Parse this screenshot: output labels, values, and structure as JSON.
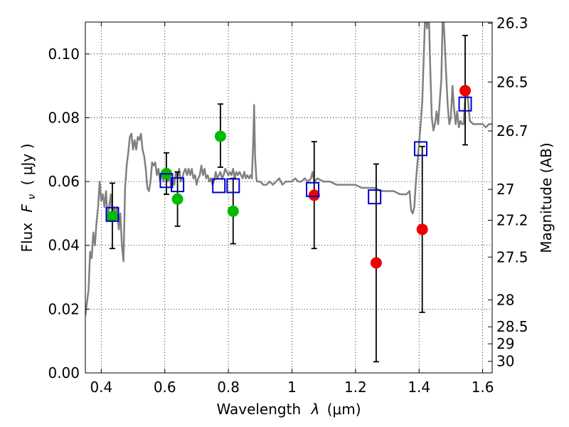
{
  "chart_data": {
    "type": "scatter",
    "xlabel": "Wavelength",
    "xlabel_symbol": "λ",
    "xlabel_unit": "(μm)",
    "ylabel": "Flux",
    "ylabel_symbol": "F",
    "ylabel_subscript": "ν",
    "ylabel_unit": "( μJy )",
    "y2label": "Magnitude (AB)",
    "xlim": [
      0.35,
      1.63
    ],
    "ylim": [
      0.0,
      0.11
    ],
    "grid": true,
    "xticks": [
      0.4,
      0.6,
      0.8,
      1.0,
      1.2,
      1.4,
      1.6
    ],
    "xtick_labels": [
      "0.4",
      "0.6",
      "0.8",
      "1",
      "1.2",
      "1.4",
      "1.6"
    ],
    "yticks": [
      0.0,
      0.02,
      0.04,
      0.06,
      0.08,
      0.1
    ],
    "ytick_labels": [
      "0.00",
      "0.02",
      "0.04",
      "0.06",
      "0.08",
      "0.10"
    ],
    "mag_ticks": [
      "26.3",
      "26.5",
      "26.7",
      "27",
      "27.2",
      "27.5",
      "28",
      "28.5",
      "29",
      "30"
    ],
    "colors": {
      "template": "#808080",
      "model": "#0000cc",
      "green": "#00bb00",
      "red": "#ee0000",
      "errorbar": "#000000"
    },
    "series": [
      {
        "marker": "circle-green",
        "points": [
          {
            "x": 0.435,
            "y": 0.049,
            "yerr_low": 0.039,
            "yerr_high": 0.0595
          },
          {
            "x": 0.605,
            "y": 0.0625,
            "yerr_low": 0.056,
            "yerr_high": 0.069
          },
          {
            "x": 0.64,
            "y": 0.0545,
            "yerr_low": 0.046,
            "yerr_high": 0.063
          },
          {
            "x": 0.775,
            "y": 0.0742,
            "yerr_low": 0.0645,
            "yerr_high": 0.0843
          },
          {
            "x": 0.815,
            "y": 0.0507,
            "yerr_low": 0.0405,
            "yerr_high": 0.061
          }
        ]
      },
      {
        "marker": "circle-red",
        "points": [
          {
            "x": 1.07,
            "y": 0.0557,
            "yerr_low": 0.039,
            "yerr_high": 0.0725
          },
          {
            "x": 1.265,
            "y": 0.0345,
            "yerr_low": 0.0035,
            "yerr_high": 0.0655
          },
          {
            "x": 1.41,
            "y": 0.045,
            "yerr_low": 0.019,
            "yerr_high": 0.071
          },
          {
            "x": 1.545,
            "y": 0.0885,
            "yerr_low": 0.0715,
            "yerr_high": 0.1058
          }
        ]
      },
      {
        "marker": "square-open-blue",
        "points": [
          {
            "x": 0.435,
            "y": 0.0497
          },
          {
            "x": 0.605,
            "y": 0.0603
          },
          {
            "x": 0.64,
            "y": 0.059
          },
          {
            "x": 0.77,
            "y": 0.0587
          },
          {
            "x": 0.815,
            "y": 0.0587
          },
          {
            "x": 1.065,
            "y": 0.0575
          },
          {
            "x": 1.26,
            "y": 0.0552
          },
          {
            "x": 1.405,
            "y": 0.0703
          },
          {
            "x": 1.545,
            "y": 0.0843
          }
        ]
      }
    ],
    "template_spectrum": [
      [
        0.35,
        0.018
      ],
      [
        0.36,
        0.026
      ],
      [
        0.365,
        0.038
      ],
      [
        0.37,
        0.036
      ],
      [
        0.375,
        0.044
      ],
      [
        0.38,
        0.04
      ],
      [
        0.385,
        0.047
      ],
      [
        0.39,
        0.052
      ],
      [
        0.395,
        0.06
      ],
      [
        0.4,
        0.054
      ],
      [
        0.405,
        0.056
      ],
      [
        0.41,
        0.052
      ],
      [
        0.415,
        0.057
      ],
      [
        0.42,
        0.048
      ],
      [
        0.425,
        0.052
      ],
      [
        0.43,
        0.056
      ],
      [
        0.435,
        0.049
      ],
      [
        0.44,
        0.052
      ],
      [
        0.445,
        0.05
      ],
      [
        0.45,
        0.052
      ],
      [
        0.455,
        0.045
      ],
      [
        0.46,
        0.05
      ],
      [
        0.465,
        0.04
      ],
      [
        0.47,
        0.035
      ],
      [
        0.475,
        0.058
      ],
      [
        0.48,
        0.065
      ],
      [
        0.485,
        0.069
      ],
      [
        0.49,
        0.074
      ],
      [
        0.495,
        0.075
      ],
      [
        0.5,
        0.07
      ],
      [
        0.505,
        0.073
      ],
      [
        0.51,
        0.07
      ],
      [
        0.515,
        0.074
      ],
      [
        0.52,
        0.073
      ],
      [
        0.525,
        0.075
      ],
      [
        0.53,
        0.07
      ],
      [
        0.535,
        0.068
      ],
      [
        0.54,
        0.064
      ],
      [
        0.545,
        0.058
      ],
      [
        0.55,
        0.057
      ],
      [
        0.555,
        0.06
      ],
      [
        0.56,
        0.066
      ],
      [
        0.565,
        0.065
      ],
      [
        0.57,
        0.066
      ],
      [
        0.575,
        0.062
      ],
      [
        0.58,
        0.064
      ],
      [
        0.585,
        0.06
      ],
      [
        0.59,
        0.063
      ],
      [
        0.595,
        0.06
      ],
      [
        0.6,
        0.061
      ],
      [
        0.605,
        0.063
      ],
      [
        0.61,
        0.06
      ],
      [
        0.615,
        0.062
      ],
      [
        0.62,
        0.058
      ],
      [
        0.625,
        0.061
      ],
      [
        0.63,
        0.059
      ],
      [
        0.635,
        0.063
      ],
      [
        0.64,
        0.061
      ],
      [
        0.645,
        0.064
      ],
      [
        0.65,
        0.06
      ],
      [
        0.655,
        0.061
      ],
      [
        0.66,
        0.063
      ],
      [
        0.665,
        0.064
      ],
      [
        0.67,
        0.062
      ],
      [
        0.675,
        0.064
      ],
      [
        0.68,
        0.062
      ],
      [
        0.685,
        0.064
      ],
      [
        0.69,
        0.061
      ],
      [
        0.695,
        0.062
      ],
      [
        0.7,
        0.059
      ],
      [
        0.705,
        0.061
      ],
      [
        0.71,
        0.062
      ],
      [
        0.715,
        0.065
      ],
      [
        0.72,
        0.062
      ],
      [
        0.725,
        0.064
      ],
      [
        0.73,
        0.061
      ],
      [
        0.735,
        0.062
      ],
      [
        0.74,
        0.06
      ],
      [
        0.745,
        0.061
      ],
      [
        0.75,
        0.059
      ],
      [
        0.755,
        0.06
      ],
      [
        0.76,
        0.063
      ],
      [
        0.765,
        0.061
      ],
      [
        0.77,
        0.062
      ],
      [
        0.775,
        0.063
      ],
      [
        0.78,
        0.061
      ],
      [
        0.785,
        0.062
      ],
      [
        0.79,
        0.064
      ],
      [
        0.795,
        0.063
      ],
      [
        0.8,
        0.062
      ],
      [
        0.805,
        0.063
      ],
      [
        0.81,
        0.062
      ],
      [
        0.815,
        0.064
      ],
      [
        0.82,
        0.061
      ],
      [
        0.825,
        0.063
      ],
      [
        0.83,
        0.062
      ],
      [
        0.835,
        0.063
      ],
      [
        0.84,
        0.062
      ],
      [
        0.845,
        0.061
      ],
      [
        0.85,
        0.063
      ],
      [
        0.855,
        0.061
      ],
      [
        0.86,
        0.062
      ],
      [
        0.865,
        0.061
      ],
      [
        0.87,
        0.062
      ],
      [
        0.874,
        0.061
      ],
      [
        0.878,
        0.072
      ],
      [
        0.881,
        0.084
      ],
      [
        0.884,
        0.068
      ],
      [
        0.888,
        0.061
      ],
      [
        0.89,
        0.06
      ],
      [
        0.9,
        0.06
      ],
      [
        0.91,
        0.059
      ],
      [
        0.92,
        0.059
      ],
      [
        0.93,
        0.06
      ],
      [
        0.94,
        0.059
      ],
      [
        0.95,
        0.06
      ],
      [
        0.96,
        0.061
      ],
      [
        0.97,
        0.059
      ],
      [
        0.98,
        0.06
      ],
      [
        0.99,
        0.06
      ],
      [
        1.0,
        0.06
      ],
      [
        1.01,
        0.061
      ],
      [
        1.02,
        0.06
      ],
      [
        1.03,
        0.06
      ],
      [
        1.04,
        0.061
      ],
      [
        1.05,
        0.06
      ],
      [
        1.06,
        0.061
      ],
      [
        1.065,
        0.063
      ],
      [
        1.07,
        0.06
      ],
      [
        1.08,
        0.061
      ],
      [
        1.1,
        0.06
      ],
      [
        1.12,
        0.06
      ],
      [
        1.14,
        0.059
      ],
      [
        1.16,
        0.059
      ],
      [
        1.18,
        0.059
      ],
      [
        1.2,
        0.059
      ],
      [
        1.22,
        0.058
      ],
      [
        1.24,
        0.058
      ],
      [
        1.26,
        0.058
      ],
      [
        1.28,
        0.057
      ],
      [
        1.3,
        0.057
      ],
      [
        1.32,
        0.057
      ],
      [
        1.34,
        0.056
      ],
      [
        1.36,
        0.056
      ],
      [
        1.37,
        0.057
      ],
      [
        1.375,
        0.051
      ],
      [
        1.38,
        0.05
      ],
      [
        1.385,
        0.052
      ],
      [
        1.39,
        0.06
      ],
      [
        1.395,
        0.066
      ],
      [
        1.4,
        0.072
      ],
      [
        1.405,
        0.078
      ],
      [
        1.41,
        0.085
      ],
      [
        1.415,
        0.1
      ],
      [
        1.42,
        0.115
      ],
      [
        1.425,
        0.108
      ],
      [
        1.43,
        0.115
      ],
      [
        1.435,
        0.096
      ],
      [
        1.44,
        0.08
      ],
      [
        1.445,
        0.076
      ],
      [
        1.45,
        0.078
      ],
      [
        1.455,
        0.082
      ],
      [
        1.46,
        0.078
      ],
      [
        1.465,
        0.085
      ],
      [
        1.47,
        0.092
      ],
      [
        1.475,
        0.115
      ],
      [
        1.48,
        0.105
      ],
      [
        1.485,
        0.094
      ],
      [
        1.49,
        0.084
      ],
      [
        1.495,
        0.078
      ],
      [
        1.5,
        0.08
      ],
      [
        1.505,
        0.09
      ],
      [
        1.51,
        0.083
      ],
      [
        1.515,
        0.078
      ],
      [
        1.52,
        0.082
      ],
      [
        1.525,
        0.077
      ],
      [
        1.53,
        0.079
      ],
      [
        1.535,
        0.078
      ],
      [
        1.54,
        0.078
      ],
      [
        1.545,
        0.086
      ],
      [
        1.55,
        0.09
      ],
      [
        1.555,
        0.084
      ],
      [
        1.56,
        0.079
      ],
      [
        1.57,
        0.078
      ],
      [
        1.58,
        0.078
      ],
      [
        1.59,
        0.078
      ],
      [
        1.6,
        0.078
      ],
      [
        1.61,
        0.077
      ],
      [
        1.62,
        0.078
      ],
      [
        1.63,
        0.078
      ]
    ]
  }
}
